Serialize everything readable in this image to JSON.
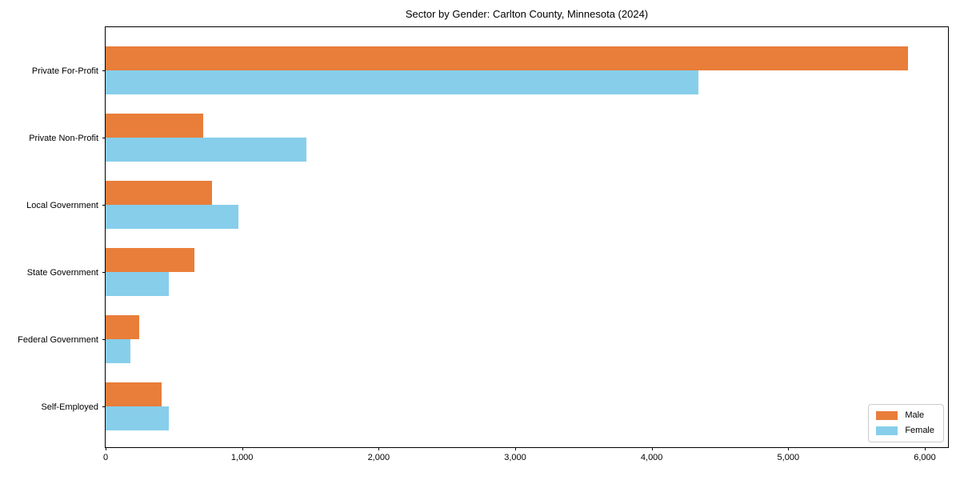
{
  "chart_data": {
    "type": "bar",
    "orientation": "horizontal",
    "title": "Sector by Gender: Carlton County, Minnesota (2024)",
    "categories": [
      "Private For-Profit",
      "Private Non-Profit",
      "Local Government",
      "State Government",
      "Federal Government",
      "Self-Employed"
    ],
    "series": [
      {
        "name": "Male",
        "color": "#e87e3a",
        "values": [
          5875,
          715,
          780,
          650,
          245,
          410
        ]
      },
      {
        "name": "Female",
        "color": "#87ceeb",
        "values": [
          4340,
          1470,
          970,
          465,
          180,
          460
        ]
      }
    ],
    "xlim": [
      0,
      6170
    ],
    "x_ticks": [
      0,
      1000,
      2000,
      3000,
      4000,
      5000,
      6000
    ],
    "x_tick_labels": [
      "0",
      "1,000",
      "2,000",
      "3,000",
      "4,000",
      "5,000",
      "6,000"
    ],
    "xlabel": "",
    "ylabel": "",
    "grid": false,
    "legend": {
      "position": "lower right",
      "entries": [
        "Male",
        "Female"
      ]
    },
    "colors": {
      "axis": "#000000",
      "legend_border": "#cccccc",
      "background": "#ffffff"
    }
  }
}
